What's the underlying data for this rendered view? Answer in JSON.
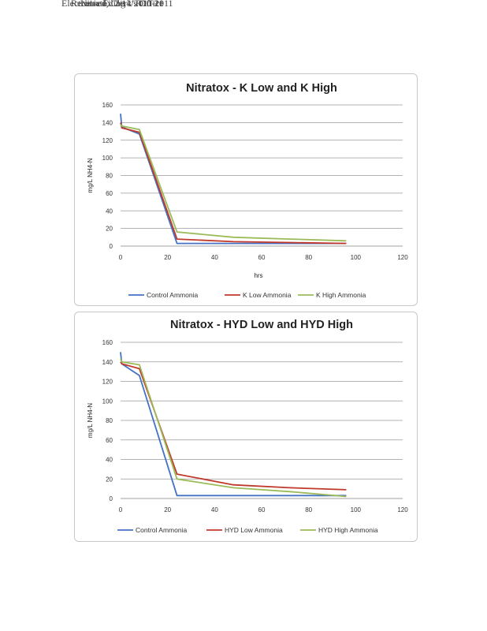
{
  "header": {
    "overlapped_text": [
      "Electronic Filing",
      "Received, Clerk's Office",
      "Nitratox 2/14/2011",
      "R10-11",
      "2011"
    ]
  },
  "colors": {
    "control": "#4472C4",
    "low": "#C0392B",
    "high": "#9BBB59",
    "grid": "#9a9a9a",
    "axis": "#808080"
  },
  "chart_data": [
    {
      "type": "line",
      "title": "Nitratox - K Low and K High",
      "xlabel": "hrs",
      "ylabel": "mg/L NH4-N",
      "xlim": [
        0,
        120
      ],
      "ylim": [
        0,
        160
      ],
      "xticks": [
        "0",
        "20",
        "40",
        "60",
        "80",
        "100",
        "120"
      ],
      "yticks": [
        "0",
        "20",
        "40",
        "60",
        "80",
        "100",
        "120",
        "140",
        "160"
      ],
      "grid": true,
      "legend_position": "bottom",
      "series": [
        {
          "name": "Control Ammonia",
          "key": "control",
          "x": [
            0,
            0.5,
            8,
            24,
            48,
            72,
            96
          ],
          "y": [
            150,
            135,
            127,
            3,
            3,
            3,
            3
          ]
        },
        {
          "name": "K Low Ammonia",
          "key": "low",
          "x": [
            0,
            0.5,
            8,
            24,
            48,
            72,
            96
          ],
          "y": [
            140,
            134,
            129,
            8,
            5,
            4,
            3
          ]
        },
        {
          "name": "K High Ammonia",
          "key": "high",
          "x": [
            0,
            0.5,
            8,
            24,
            48,
            72,
            96
          ],
          "y": [
            138,
            136,
            132,
            16,
            10,
            8,
            6
          ]
        }
      ]
    },
    {
      "type": "line",
      "title": "Nitratox - HYD Low and HYD High",
      "xlabel": "",
      "ylabel": "mg/L NH4-N",
      "xlim": [
        0,
        120
      ],
      "ylim": [
        0,
        160
      ],
      "xticks": [
        "0",
        "20",
        "40",
        "60",
        "80",
        "100",
        "120"
      ],
      "yticks": [
        "0",
        "20",
        "40",
        "60",
        "80",
        "100",
        "120",
        "140",
        "160"
      ],
      "grid": true,
      "legend_position": "bottom",
      "series": [
        {
          "name": "Control Ammonia",
          "key": "control",
          "x": [
            0,
            0.5,
            8,
            24,
            48,
            72,
            96
          ],
          "y": [
            150,
            138,
            126,
            3,
            3,
            3,
            3
          ]
        },
        {
          "name": "HYD Low Ammonia",
          "key": "low",
          "x": [
            0,
            0.5,
            8,
            24,
            48,
            72,
            96
          ],
          "y": [
            140,
            138,
            133,
            25,
            14,
            11,
            9
          ]
        },
        {
          "name": "HYD High Ammonia",
          "key": "high",
          "x": [
            0,
            0.5,
            8,
            24,
            48,
            72,
            96
          ],
          "y": [
            143,
            140,
            137,
            20,
            11,
            7,
            2
          ]
        }
      ]
    }
  ]
}
